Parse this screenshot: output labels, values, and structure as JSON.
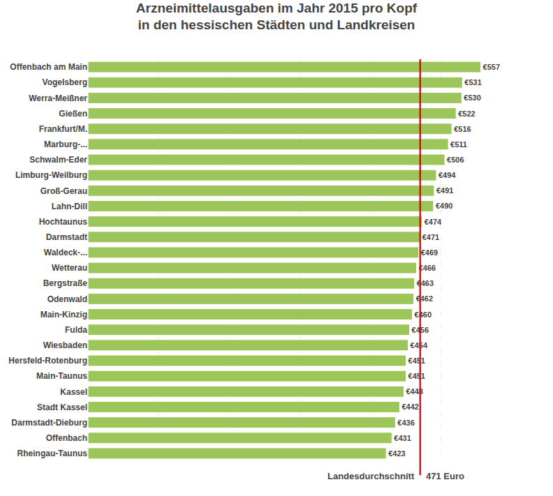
{
  "chart_data": {
    "type": "bar",
    "orientation": "horizontal",
    "title": "Arzneimittelausgaben im Jahr 2015 pro Kopf\nin den hessischen Städten und Landkreisen",
    "categories": [
      "Offenbach am Main",
      "Vogelsberg",
      "Werra-Meißner",
      "Gießen",
      "Frankfurt/M.",
      "Marburg-...",
      "Schwalm-Eder",
      "Limburg-Weilburg",
      "Groß-Gerau",
      "Lahn-Dill",
      "Hochtaunus",
      "Darmstadt",
      "Waldeck-...",
      "Wetterau",
      "Bergstraße",
      "Odenwald",
      "Main-Kinzig",
      "Fulda",
      "Wiesbaden",
      "Hersfeld-Rotenburg",
      "Main-Taunus",
      "Kassel",
      "Stadt Kassel",
      "Darmstadt-Dieburg",
      "Offenbach",
      "Rheingau-Taunus"
    ],
    "values": [
      557,
      531,
      530,
      522,
      516,
      511,
      506,
      494,
      491,
      490,
      474,
      471,
      469,
      466,
      463,
      462,
      460,
      456,
      454,
      451,
      451,
      448,
      442,
      436,
      431,
      423
    ],
    "value_labels": [
      "€557",
      "€531",
      "€530",
      "€522",
      "€516",
      "€511",
      "€506",
      "€494",
      "€491",
      "€490",
      "€474",
      "€471",
      "€469",
      "€466",
      "€463",
      "€462",
      "€460",
      "€456",
      "€454",
      "€451",
      "€451",
      "€448",
      "€442",
      "€436",
      "€431",
      "€423"
    ],
    "data_labels": true,
    "color": "#9dc65a",
    "xlim": [
      0,
      600
    ],
    "xticks": [
      0,
      100,
      200,
      300,
      400,
      500,
      600
    ],
    "grid": true,
    "tick_labels": "y",
    "average": {
      "value": 471,
      "label": "471 Euro",
      "text": "Landesdurchschnitt",
      "color": "#cc0000"
    }
  }
}
